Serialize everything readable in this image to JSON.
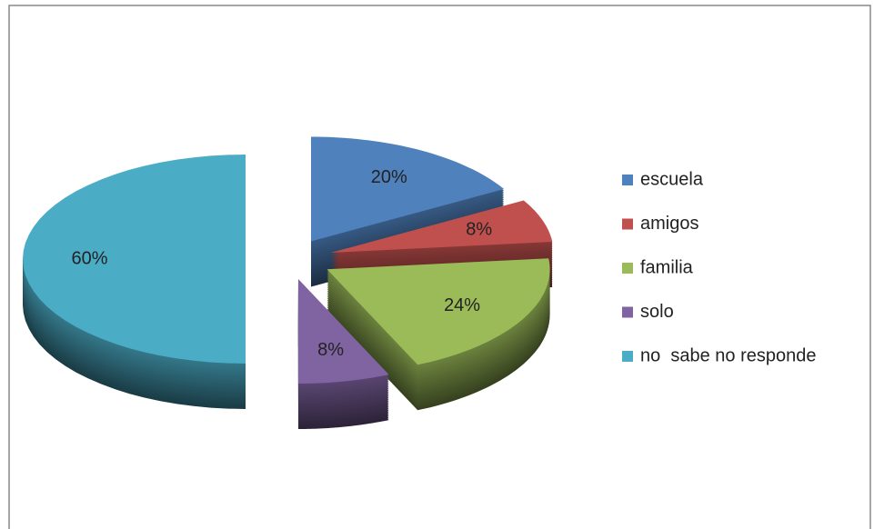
{
  "chart_data": {
    "type": "pie",
    "categories": [
      "escuela",
      "amigos",
      "familia",
      "solo",
      "no  sabe no responde"
    ],
    "values": [
      20,
      8,
      24,
      8,
      60
    ],
    "value_labels": [
      "20%",
      "8%",
      "24%",
      "8%",
      "60%"
    ],
    "colors": [
      "#4f81bd",
      "#c0504d",
      "#9bbb59",
      "#8064a2",
      "#4bacc6"
    ],
    "legend": "right"
  }
}
